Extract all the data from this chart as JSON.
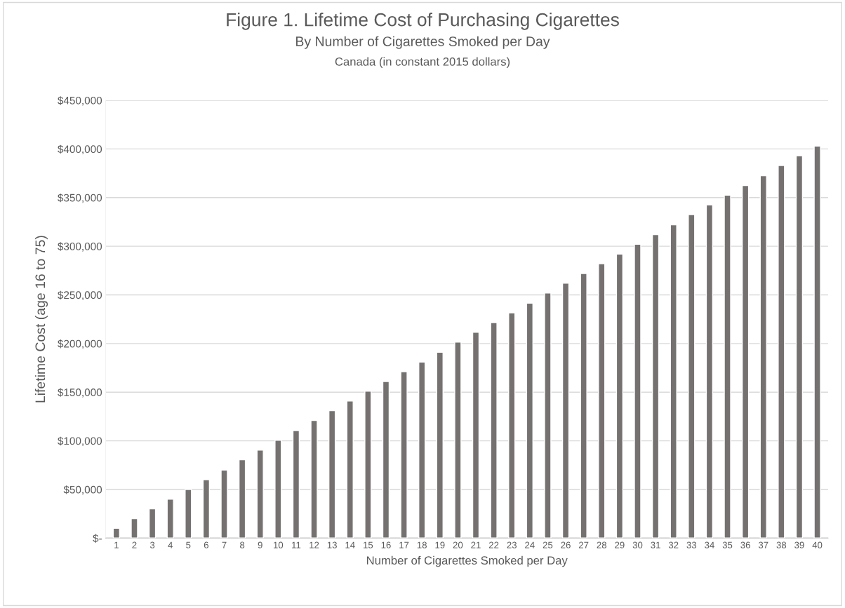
{
  "chart_data": {
    "type": "bar",
    "title": "Figure 1. Lifetime Cost of Purchasing Cigarettes",
    "subtitle": "By Number of Cigarettes Smoked per Day\nCanada (in constant 2015 dollars)",
    "xlabel": "Number of Cigarettes Smoked per Day",
    "ylabel": "Lifetime Cost (age 16 to 75)",
    "categories": [
      "1",
      "2",
      "3",
      "4",
      "5",
      "6",
      "7",
      "8",
      "9",
      "10",
      "11",
      "12",
      "13",
      "14",
      "15",
      "16",
      "17",
      "18",
      "19",
      "20",
      "21",
      "22",
      "23",
      "24",
      "25",
      "26",
      "27",
      "28",
      "29",
      "30",
      "31",
      "32",
      "33",
      "34",
      "35",
      "36",
      "37",
      "38",
      "39",
      "40"
    ],
    "values": [
      10000,
      20000,
      30000,
      40000,
      50000,
      60000,
      70000,
      80500,
      90500,
      100500,
      110500,
      121000,
      131000,
      141000,
      151000,
      161000,
      171000,
      181000,
      191000,
      201500,
      211500,
      221500,
      231500,
      241500,
      252000,
      262000,
      272000,
      282000,
      292000,
      302000,
      312000,
      322000,
      332500,
      342500,
      352500,
      362500,
      372500,
      383000,
      393000,
      403000
    ],
    "color": "#767171",
    "ylim": [
      0,
      450000
    ],
    "yticks": [
      {
        "value": 0,
        "label": "$-"
      },
      {
        "value": 50000,
        "label": "$50,000"
      },
      {
        "value": 100000,
        "label": "$100,000"
      },
      {
        "value": 150000,
        "label": "$150,000"
      },
      {
        "value": 200000,
        "label": "$200,000"
      },
      {
        "value": 250000,
        "label": "$250,000"
      },
      {
        "value": 300000,
        "label": "$300,000"
      },
      {
        "value": 350000,
        "label": "$350,000"
      },
      {
        "value": 400000,
        "label": "$400,000"
      },
      {
        "value": 450000,
        "label": "$450,000"
      }
    ],
    "grid": "y"
  }
}
